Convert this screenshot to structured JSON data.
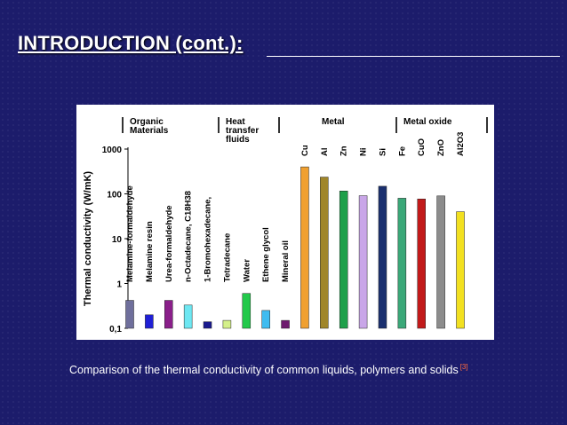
{
  "slide": {
    "title": "INTRODUCTION (cont.):",
    "caption": "Comparison of the thermal conductivity of common liquids, polymers and solids",
    "caption_ref": "[3]"
  },
  "chart_data": {
    "type": "bar",
    "ylabel": "Thermal conductivity (W/mK)",
    "yscale": "log",
    "ylim": [
      0.1,
      1000
    ],
    "yticks": [
      "1000",
      "100",
      "10",
      "1",
      "0,1"
    ],
    "ytick_values": [
      1000,
      100,
      10,
      1,
      0.1
    ],
    "groups": [
      {
        "label": "Organic\nMaterials",
        "first": 0,
        "last": 5
      },
      {
        "label": "Heat\ntransfer\nfluids",
        "first": 6,
        "last": 8
      },
      {
        "label": "Metal",
        "first": 9,
        "last": 14
      },
      {
        "label": "Metal oxide",
        "first": 15,
        "last": 17
      }
    ],
    "categories": [
      "Melamine-formaldehyde",
      "Melamine resin",
      "Urea-formaldehyde",
      "n-Octadecane, C18H38",
      "1-Bromohexadecane,",
      "Tetradecane",
      "Water",
      "Ethene glycol",
      "Mineral oil",
      "Cu",
      "Al",
      "Zn",
      "Ni",
      "Si",
      "Fe",
      "CuO",
      "ZnO",
      "Al2O3"
    ],
    "values": [
      0.42,
      0.2,
      0.42,
      0.33,
      0.14,
      0.15,
      0.6,
      0.25,
      0.15,
      400,
      237,
      116,
      91,
      148,
      80,
      77,
      90,
      40
    ],
    "colors": [
      "#6f6f9c",
      "#1f1fd6",
      "#8a1f8a",
      "#6ee7f2",
      "#1a1a8e",
      "#d4f08a",
      "#22c94a",
      "#3fbcf0",
      "#6e1a6e",
      "#f0a030",
      "#a0862a",
      "#1ea04a",
      "#c9a6e8",
      "#1a2f6e",
      "#3aa878",
      "#c21a1a",
      "#8c8c8c",
      "#f2e020"
    ]
  }
}
